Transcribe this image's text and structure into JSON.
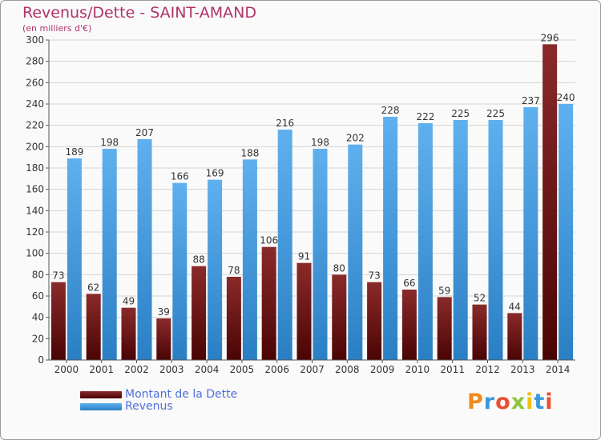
{
  "title": "Revenus/Dette - SAINT-AMAND",
  "subtitle": "(en milliers d'€)",
  "logo_text": "Proxiti",
  "colors": {
    "debt": "#7a1414",
    "revenue": "#3f99e0",
    "title": "#b0336a",
    "legend_text": "#4f6fd8"
  },
  "chart_data": {
    "type": "bar",
    "title": "Revenus/Dette - SAINT-AMAND",
    "subtitle": "(en milliers d'€)",
    "xlabel": "",
    "ylabel": "",
    "ylim": [
      0,
      300
    ],
    "yticks": [
      0,
      20,
      40,
      60,
      80,
      100,
      120,
      140,
      160,
      180,
      200,
      220,
      240,
      260,
      280,
      300
    ],
    "grid": true,
    "legend_position": "bottom-left",
    "categories": [
      "2000",
      "2001",
      "2002",
      "2003",
      "2004",
      "2005",
      "2006",
      "2007",
      "2008",
      "2009",
      "2010",
      "2011",
      "2012",
      "2013",
      "2014"
    ],
    "series": [
      {
        "name": "Montant de la Dette",
        "color": "#7a1414",
        "values": [
          73,
          62,
          49,
          39,
          88,
          78,
          106,
          91,
          80,
          73,
          66,
          59,
          52,
          44,
          296
        ]
      },
      {
        "name": "Revenus",
        "color": "#3f99e0",
        "values": [
          189,
          198,
          207,
          166,
          169,
          188,
          216,
          198,
          202,
          228,
          222,
          225,
          225,
          237,
          240
        ]
      }
    ]
  }
}
